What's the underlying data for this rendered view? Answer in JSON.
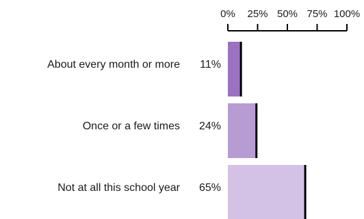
{
  "chart_data": {
    "type": "bar",
    "orientation": "horizontal",
    "categories": [
      "About every month or more",
      "Once or a few times",
      "Not at all this school year"
    ],
    "values": [
      11,
      24,
      65
    ],
    "value_labels": [
      "11%",
      "24%",
      "65%"
    ],
    "xlim": [
      0,
      100
    ],
    "x_ticks": [
      0,
      25,
      50,
      75,
      100
    ],
    "x_tick_labels": [
      "0%",
      "25%",
      "50%",
      "75%",
      "100%"
    ],
    "x_axis_position": "top",
    "grid": false,
    "legend": "none",
    "colors": [
      "#9b72c1",
      "#b79bd3",
      "#d3c2e6"
    ],
    "marker_color": "#000000"
  }
}
